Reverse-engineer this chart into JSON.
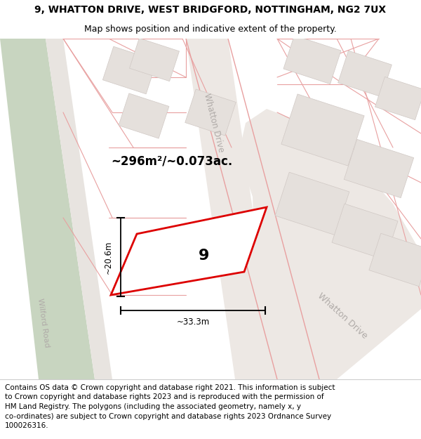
{
  "title_line1": "9, WHATTON DRIVE, WEST BRIDGFORD, NOTTINGHAM, NG2 7UX",
  "title_line2": "Map shows position and indicative extent of the property.",
  "copyright_text": "Contains OS data © Crown copyright and database right 2021. This information is subject\nto Crown copyright and database rights 2023 and is reproduced with the permission of\nHM Land Registry. The polygons (including the associated geometry, namely x, y\nco-ordinates) are subject to Crown copyright and database rights 2023 Ordnance Survey\n100026316.",
  "map_bg": "#f5f1ee",
  "green_color": "#c8d5c0",
  "green_edge": "#b8c8b0",
  "road_line_color": "#e8a0a0",
  "road_fill": "#f0ece8",
  "building_color": "#e5e0dc",
  "building_edge": "#d0c8c4",
  "property_color": "#dd0000",
  "property_number": "9",
  "area_text": "~296m²/~0.073ac.",
  "dim_width": "~33.3m",
  "dim_height": "~20.6m",
  "road_label_upper": "Whatton Drive",
  "road_label_lower": "Whatton Drive",
  "road_label_left": "Wilford Road",
  "label_color": "#b0aba8",
  "title_fontsize": 10,
  "subtitle_fontsize": 9,
  "copyright_fontsize": 7.5
}
